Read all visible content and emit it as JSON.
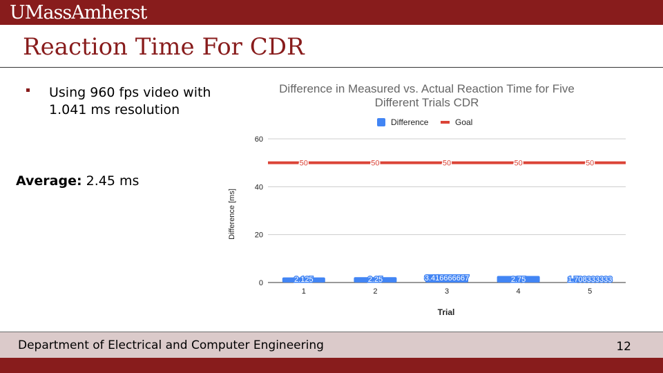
{
  "header": {
    "logo_text": "UMassAmherst"
  },
  "slide": {
    "title": "Reaction Time For CDR",
    "bullet": "Using 960 fps video with 1.041 ms resolution",
    "average_label": "Average:",
    "average_value": "2.45 ms"
  },
  "footer": {
    "department": "Department of Electrical and Computer Engineering",
    "page_number": "12"
  },
  "colors": {
    "brand": "#881c1c",
    "difference": "#4285f4",
    "goal": "#db4437"
  },
  "chart_data": {
    "type": "bar",
    "title_lines": [
      "Difference in Measured vs. Actual Reaction Time for Five",
      "Different Trials CDR"
    ],
    "xlabel": "Trial",
    "ylabel": "Difference [ms]",
    "ylim": [
      0,
      60
    ],
    "yticks": [
      0,
      20,
      40,
      60
    ],
    "categories": [
      "1",
      "2",
      "3",
      "4",
      "5"
    ],
    "series": [
      {
        "name": "Difference",
        "kind": "bar",
        "color": "#4285f4",
        "values": [
          2.125,
          2.25,
          3.416666667,
          2.75,
          1.708333333
        ],
        "labels": [
          "2.125",
          "2.25",
          "3.416666667",
          "2.75",
          "1.708333333"
        ]
      },
      {
        "name": "Goal",
        "kind": "line",
        "color": "#db4437",
        "values": [
          50,
          50,
          50,
          50,
          50
        ],
        "labels": [
          "50",
          "50",
          "50",
          "50",
          "50"
        ]
      }
    ],
    "legend_position": "top",
    "grid": true
  }
}
